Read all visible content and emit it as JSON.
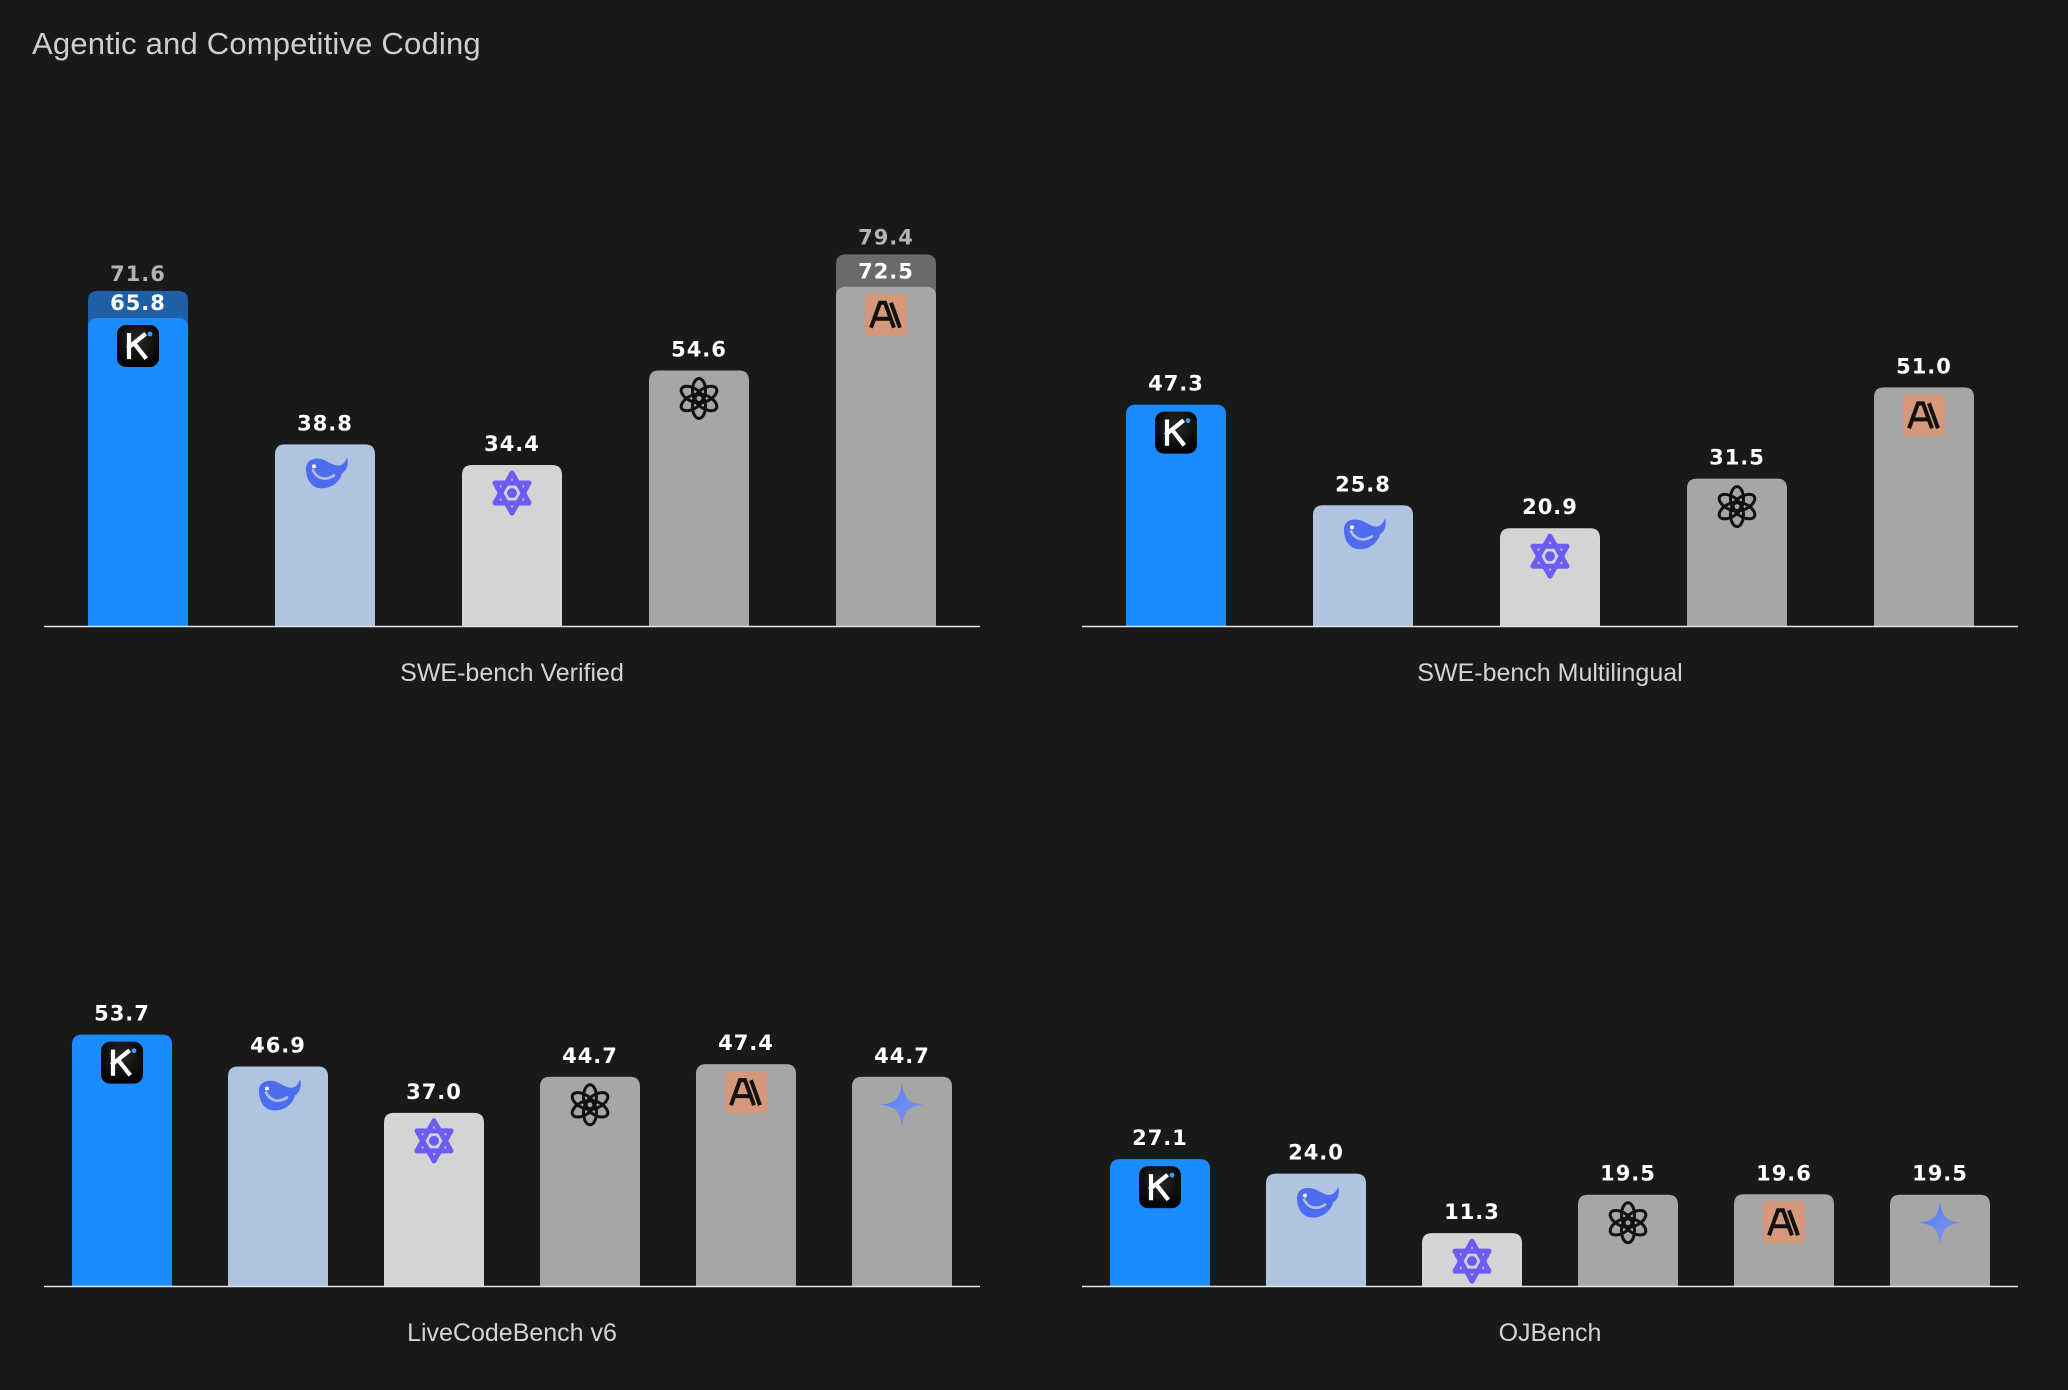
{
  "page": {
    "title": "Agentic and Competitive Coding"
  },
  "colors": {
    "kimi": "#1b8cff",
    "kimi_extended": "#1e5fa6",
    "deepseek": "#afc4e0",
    "qwen": "#d4d4d4",
    "openai": "#a6a6a6",
    "anthropic": "#a6a6a6",
    "anthropic_extended": "#6a6a6a",
    "gemini": "#a6a6a6",
    "anthropic_badge": "#d6987a",
    "deepseek_icon": "#4f6bef",
    "qwen_icon": "#6a5cf5"
  },
  "icons": {
    "kimi": "kimi-k-icon",
    "deepseek": "deepseek-whale-icon",
    "qwen": "qwen-star-icon",
    "openai": "openai-knot-icon",
    "anthropic": "anthropic-a-icon",
    "gemini": "gemini-sparkle-icon"
  },
  "chart_data": [
    {
      "type": "bar",
      "xlabel": "SWE-bench Verified",
      "ylim": [
        0,
        83
      ],
      "bars": [
        {
          "model": "kimi",
          "value": 65.8,
          "extended": 71.6
        },
        {
          "model": "deepseek",
          "value": 38.8
        },
        {
          "model": "qwen",
          "value": 34.4
        },
        {
          "model": "openai",
          "value": 54.6
        },
        {
          "model": "anthropic",
          "value": 72.5,
          "extended": 79.4
        }
      ]
    },
    {
      "type": "bar",
      "xlabel": "SWE-bench Multilingual",
      "ylim": [
        0,
        83
      ],
      "bars": [
        {
          "model": "kimi",
          "value": 47.3
        },
        {
          "model": "deepseek",
          "value": 25.8
        },
        {
          "model": "qwen",
          "value": 20.9
        },
        {
          "model": "openai",
          "value": 31.5
        },
        {
          "model": "anthropic",
          "value": 51.0
        }
      ]
    },
    {
      "type": "bar",
      "xlabel": "LiveCodeBench v6",
      "ylim": [
        0,
        71
      ],
      "bars": [
        {
          "model": "kimi",
          "value": 53.7
        },
        {
          "model": "deepseek",
          "value": 46.9
        },
        {
          "model": "qwen",
          "value": 37.0
        },
        {
          "model": "openai",
          "value": 44.7
        },
        {
          "model": "anthropic",
          "value": 47.4
        },
        {
          "model": "gemini",
          "value": 44.7
        }
      ]
    },
    {
      "type": "bar",
      "xlabel": "OJBench",
      "ylim": [
        0,
        71
      ],
      "bars": [
        {
          "model": "kimi",
          "value": 27.1
        },
        {
          "model": "deepseek",
          "value": 24.0
        },
        {
          "model": "qwen",
          "value": 11.3
        },
        {
          "model": "openai",
          "value": 19.5
        },
        {
          "model": "anthropic",
          "value": 19.6
        },
        {
          "model": "gemini",
          "value": 19.5
        }
      ]
    }
  ]
}
